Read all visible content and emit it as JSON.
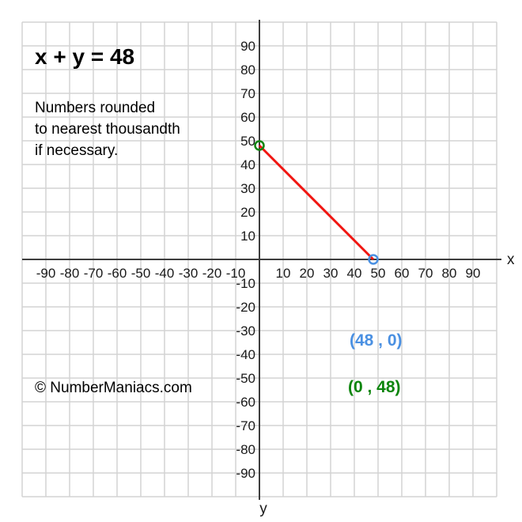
{
  "title": "x + y = 48",
  "note": {
    "line1": "Numbers rounded",
    "line2": "to nearest thousandth",
    "line3": "if necessary."
  },
  "copyright": "© NumberManiacs.com",
  "chart_data": {
    "type": "line",
    "equation": "x + y = 48",
    "xlabel": "x",
    "ylabel": "y",
    "xlim": [
      -100,
      100
    ],
    "ylim": [
      -100,
      100
    ],
    "grid": true,
    "grid_step": 10,
    "x_ticks": [
      -90,
      -80,
      -70,
      -60,
      -50,
      -40,
      -30,
      -20,
      -10,
      10,
      20,
      30,
      40,
      50,
      60,
      70,
      80,
      90
    ],
    "y_ticks": [
      90,
      80,
      70,
      60,
      50,
      40,
      30,
      20,
      10,
      -10,
      -20,
      -30,
      -40,
      -50,
      -60,
      -70,
      -80,
      -90
    ],
    "series": [
      {
        "name": "x + y = 48",
        "color": "#f01511",
        "points": [
          [
            0,
            48
          ],
          [
            48,
            0
          ]
        ]
      }
    ],
    "intercepts": [
      {
        "name": "x-intercept",
        "x": 48,
        "y": 0,
        "color": "#4a90e2",
        "label": "(48 , 0)"
      },
      {
        "name": "y-intercept",
        "x": 0,
        "y": 48,
        "color": "#0d850d",
        "label": "(0 , 48)"
      }
    ],
    "colors": {
      "grid": "#d4d4d4",
      "axis": "#3d3d3d",
      "line": "#f01511",
      "tick_text": "#1a1a1a"
    }
  }
}
